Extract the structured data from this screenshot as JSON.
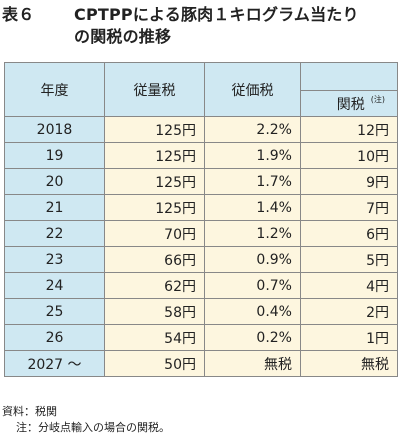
{
  "title": {
    "prefix": "表６",
    "line1": "CPTPPによる豚肉１キログラム当たり",
    "line2": "の関税の推移"
  },
  "table": {
    "headers": {
      "year": "年度",
      "specific": "従量税",
      "ad_valorem": "従価税",
      "tariff": "関税",
      "tariff_note": "(注)"
    },
    "rows": [
      {
        "year": "2018",
        "specific": "125円",
        "ad_valorem": "2.2%",
        "tariff": "12円"
      },
      {
        "year": "19",
        "specific": "125円",
        "ad_valorem": "1.9%",
        "tariff": "10円"
      },
      {
        "year": "20",
        "specific": "125円",
        "ad_valorem": "1.7%",
        "tariff": "9円"
      },
      {
        "year": "21",
        "specific": "125円",
        "ad_valorem": "1.4%",
        "tariff": "7円"
      },
      {
        "year": "22",
        "specific": "70円",
        "ad_valorem": "1.2%",
        "tariff": "6円"
      },
      {
        "year": "23",
        "specific": "66円",
        "ad_valorem": "0.9%",
        "tariff": "5円"
      },
      {
        "year": "24",
        "specific": "62円",
        "ad_valorem": "0.7%",
        "tariff": "4円"
      },
      {
        "year": "25",
        "specific": "58円",
        "ad_valorem": "0.4%",
        "tariff": "2円"
      },
      {
        "year": "26",
        "specific": "54円",
        "ad_valorem": "0.2%",
        "tariff": "1円"
      },
      {
        "year": "2027 ～",
        "specific": "50円",
        "ad_valorem": "無税",
        "tariff": "無税"
      }
    ]
  },
  "footer": {
    "source": "資料：税関",
    "note": "注：分岐点輸入の場合の関税。"
  }
}
